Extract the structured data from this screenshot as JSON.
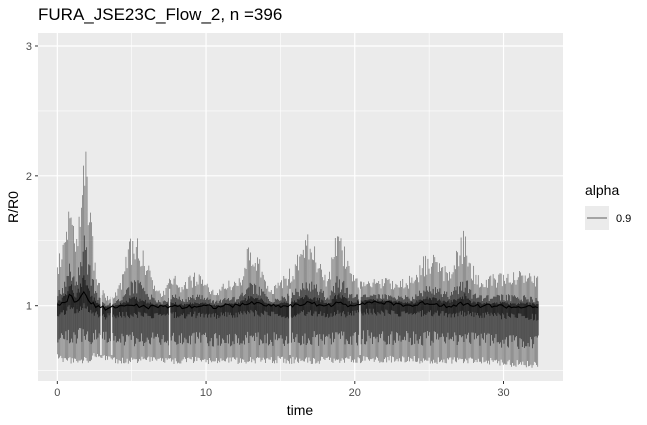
{
  "chart_data": {
    "type": "line",
    "title": "FURA_JSE23C_Flow_2, n =396",
    "xlabel": "time",
    "ylabel": "R/R0",
    "xlim": [
      -1.3,
      34
    ],
    "ylim": [
      0.42,
      3.1
    ],
    "x_ticks": [
      0,
      10,
      20,
      30
    ],
    "x_tick_labels": [
      "0",
      "10",
      "20",
      "30"
    ],
    "y_ticks": [
      1,
      2,
      3
    ],
    "y_tick_labels": [
      "1",
      "2",
      "3"
    ],
    "grid": true,
    "line_color": "#000000",
    "legend": {
      "title": "alpha",
      "position": "right",
      "entries": [
        {
          "label": "0.9",
          "color": "#000000"
        }
      ]
    },
    "series": [
      {
        "x": [
          0.0,
          0.5,
          0.85,
          1.2,
          1.8,
          2.2,
          2.6,
          3.2,
          3.8,
          4.3,
          4.9,
          5.4,
          5.9,
          6.5,
          7.0,
          7.8,
          8.4,
          9.3,
          10.0,
          10.6,
          11.5,
          12.2,
          12.9,
          13.5,
          14.3,
          15.0,
          15.7,
          16.3,
          16.9,
          17.6,
          18.2,
          18.8,
          19.2,
          19.7,
          20.3,
          21.0,
          22.0,
          23.0,
          24.0,
          24.6,
          25.1,
          25.6,
          26.2,
          27.0,
          27.4,
          27.8,
          28.5,
          29.5,
          30.5,
          31.5,
          32.3
        ],
        "y_max": [
          1.35,
          1.55,
          1.92,
          1.45,
          2.5,
          1.78,
          1.3,
          1.08,
          1.1,
          1.2,
          1.55,
          1.58,
          1.42,
          1.2,
          1.1,
          1.27,
          1.18,
          1.27,
          1.2,
          1.12,
          1.2,
          1.2,
          1.5,
          1.42,
          1.12,
          1.2,
          1.3,
          1.45,
          1.57,
          1.4,
          1.2,
          1.65,
          1.55,
          1.3,
          1.2,
          1.2,
          1.22,
          1.2,
          1.25,
          1.38,
          1.43,
          1.38,
          1.3,
          1.48,
          1.62,
          1.35,
          1.22,
          1.25,
          1.27,
          1.28,
          1.25
        ],
        "y_mean": [
          1.0,
          1.02,
          1.08,
          1.02,
          1.1,
          1.02,
          1.0,
          0.98,
          0.99,
          1.0,
          1.0,
          1.0,
          0.99,
          0.99,
          0.99,
          1.0,
          0.99,
          1.0,
          1.0,
          0.99,
          1.0,
          1.0,
          1.02,
          1.02,
          1.0,
          1.0,
          1.0,
          1.01,
          1.02,
          1.01,
          1.0,
          1.02,
          1.01,
          1.0,
          1.02,
          1.03,
          1.02,
          1.01,
          1.0,
          1.02,
          1.02,
          1.01,
          1.0,
          1.01,
          1.02,
          1.0,
          1.0,
          1.0,
          0.99,
          0.99,
          0.98
        ],
        "y_min": [
          0.58,
          0.56,
          0.55,
          0.56,
          0.55,
          0.56,
          0.6,
          0.58,
          0.56,
          0.55,
          0.55,
          0.55,
          0.56,
          0.56,
          0.55,
          0.55,
          0.55,
          0.56,
          0.55,
          0.55,
          0.55,
          0.55,
          0.55,
          0.55,
          0.55,
          0.56,
          0.55,
          0.56,
          0.55,
          0.55,
          0.56,
          0.55,
          0.56,
          0.56,
          0.55,
          0.56,
          0.56,
          0.56,
          0.56,
          0.55,
          0.55,
          0.55,
          0.55,
          0.55,
          0.54,
          0.55,
          0.55,
          0.54,
          0.53,
          0.52,
          0.52
        ]
      }
    ]
  }
}
